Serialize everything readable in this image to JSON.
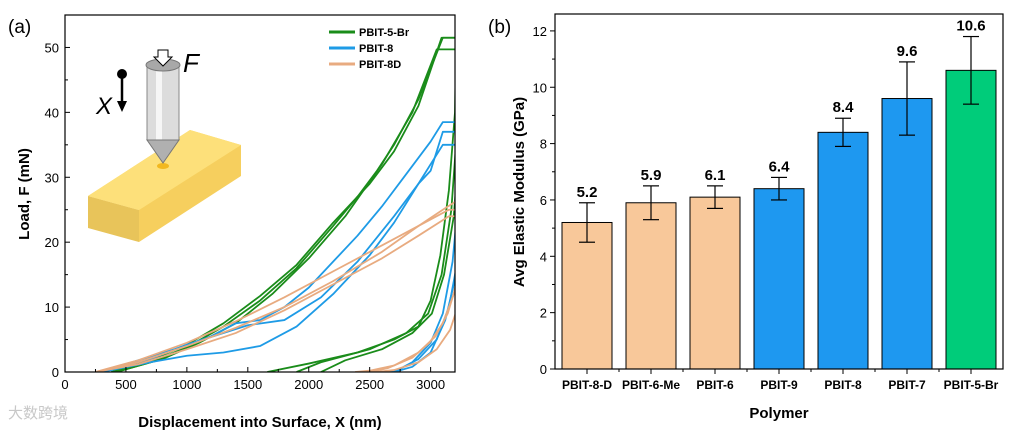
{
  "watermark": "大数跨境",
  "chart_data": [
    {
      "type": "line",
      "panel_label": "(a)",
      "title": "",
      "xlabel": "Displacement into Surface, X (nm)",
      "ylabel": "Load, F (mN)",
      "xlim": [
        0,
        3200
      ],
      "ylim": [
        0,
        55
      ],
      "xticks": [
        0,
        500,
        1000,
        1500,
        2000,
        2500,
        3000
      ],
      "yticks": [
        0,
        10,
        20,
        30,
        40,
        50
      ],
      "legend_position": "top-right",
      "inset_labels": {
        "displacement": "X",
        "force": "F"
      },
      "series": [
        {
          "name": "PBIT-5-Br",
          "color": "#1a8c1a",
          "curves": [
            [
              [
                420,
                0
              ],
              [
                700,
                1.5
              ],
              [
                1000,
                3.8
              ],
              [
                1300,
                7
              ],
              [
                1600,
                11
              ],
              [
                1900,
                16
              ],
              [
                2200,
                22.5
              ],
              [
                2400,
                27
              ],
              [
                2560,
                31
              ],
              [
                2700,
                35
              ],
              [
                2900,
                42
              ],
              [
                3100,
                51.5
              ],
              [
                3210,
                51.5
              ],
              [
                3200,
                40
              ],
              [
                3150,
                28
              ],
              [
                3080,
                18
              ],
              [
                3000,
                11
              ],
              [
                2900,
                7
              ],
              [
                2700,
                5
              ],
              [
                2400,
                3
              ],
              [
                2000,
                1.3
              ],
              [
                1660,
                0
              ]
            ],
            [
              [
                380,
                0
              ],
              [
                700,
                1.8
              ],
              [
                1000,
                4.2
              ],
              [
                1300,
                7.5
              ],
              [
                1600,
                11.7
              ],
              [
                1900,
                16.5
              ],
              [
                2200,
                23
              ],
              [
                2500,
                29
              ],
              [
                2700,
                34
              ],
              [
                2900,
                41
              ],
              [
                3090,
                51.5
              ],
              [
                3220,
                51.5
              ],
              [
                3220,
                38
              ],
              [
                3170,
                25
              ],
              [
                3090,
                15
              ],
              [
                2980,
                9
              ],
              [
                2800,
                6
              ],
              [
                2500,
                3.5
              ],
              [
                2100,
                1.5
              ],
              [
                1900,
                0
              ]
            ],
            [
              [
                420,
                0
              ],
              [
                800,
                2
              ],
              [
                1100,
                4.5
              ],
              [
                1400,
                7.5
              ],
              [
                1700,
                12
              ],
              [
                2000,
                17.5
              ],
              [
                2300,
                24
              ],
              [
                2600,
                32
              ],
              [
                2850,
                40
              ],
              [
                3050,
                49.7
              ],
              [
                3250,
                49.7
              ],
              [
                3240,
                36
              ],
              [
                3190,
                24
              ],
              [
                3110,
                15
              ],
              [
                3010,
                9
              ],
              [
                2850,
                6
              ],
              [
                2600,
                3.5
              ],
              [
                2300,
                1.8
              ],
              [
                2100,
                0
              ]
            ]
          ]
        },
        {
          "name": "PBIT-8",
          "color": "#1e9be6",
          "curves": [
            [
              [
                300,
                0
              ],
              [
                600,
                1.8
              ],
              [
                900,
                3.5
              ],
              [
                1200,
                5.5
              ],
              [
                1400,
                7.5
              ],
              [
                1600,
                8
              ],
              [
                1800,
                10
              ],
              [
                2000,
                13
              ],
              [
                2200,
                17
              ],
              [
                2400,
                21
              ],
              [
                2600,
                25.5
              ],
              [
                2800,
                30.5
              ],
              [
                3000,
                35.5
              ],
              [
                3100,
                38.5
              ],
              [
                3300,
                38.5
              ],
              [
                3280,
                28
              ],
              [
                3230,
                18
              ],
              [
                3150,
                10
              ],
              [
                3050,
                5
              ],
              [
                2900,
                2
              ],
              [
                2750,
                0.5
              ],
              [
                2650,
                0
              ]
            ],
            [
              [
                300,
                0
              ],
              [
                700,
                2
              ],
              [
                1000,
                4.2
              ],
              [
                1300,
                6
              ],
              [
                1500,
                7.2
              ],
              [
                1800,
                8
              ],
              [
                2100,
                11.5
              ],
              [
                2400,
                17
              ],
              [
                2700,
                24
              ],
              [
                2900,
                29
              ],
              [
                3000,
                31
              ],
              [
                3100,
                37
              ],
              [
                3250,
                37
              ],
              [
                3230,
                27
              ],
              [
                3180,
                17
              ],
              [
                3100,
                9
              ],
              [
                3000,
                4.5
              ],
              [
                2850,
                1.5
              ],
              [
                2700,
                0
              ]
            ],
            [
              [
                300,
                0
              ],
              [
                700,
                1.5
              ],
              [
                1000,
                2.5
              ],
              [
                1300,
                3
              ],
              [
                1600,
                4
              ],
              [
                1900,
                7
              ],
              [
                2200,
                12
              ],
              [
                2500,
                18
              ],
              [
                2700,
                23
              ],
              [
                2900,
                29
              ],
              [
                3100,
                35
              ],
              [
                3300,
                35
              ],
              [
                3270,
                25
              ],
              [
                3210,
                15
              ],
              [
                3120,
                8
              ],
              [
                3000,
                3
              ],
              [
                2850,
                0.8
              ],
              [
                2700,
                0
              ]
            ]
          ]
        },
        {
          "name": "PBIT-8D",
          "color": "#e8ab80",
          "curves": [
            [
              [
                250,
                0
              ],
              [
                600,
                1.5
              ],
              [
                1000,
                4
              ],
              [
                1400,
                6.8
              ],
              [
                1800,
                10
              ],
              [
                2200,
                14
              ],
              [
                2600,
                18.5
              ],
              [
                2900,
                22.5
              ],
              [
                3100,
                25
              ],
              [
                3200,
                26.2
              ],
              [
                3300,
                26.2
              ],
              [
                3280,
                20
              ],
              [
                3220,
                14
              ],
              [
                3140,
                9
              ],
              [
                3040,
                5.5
              ],
              [
                2900,
                3
              ],
              [
                2700,
                1
              ],
              [
                2500,
                0.2
              ],
              [
                2380,
                0
              ]
            ],
            [
              [
                250,
                0
              ],
              [
                600,
                1.8
              ],
              [
                1000,
                4.5
              ],
              [
                1400,
                7.8
              ],
              [
                1800,
                11.5
              ],
              [
                2200,
                15.5
              ],
              [
                2600,
                19.5
              ],
              [
                2900,
                22.5
              ],
              [
                3150,
                25
              ],
              [
                3270,
                25
              ],
              [
                3250,
                18
              ],
              [
                3190,
                12
              ],
              [
                3100,
                7.5
              ],
              [
                2990,
                4.5
              ],
              [
                2850,
                2.2
              ],
              [
                2650,
                0.6
              ],
              [
                2500,
                0
              ]
            ],
            [
              [
                250,
                0
              ],
              [
                600,
                1.2
              ],
              [
                1000,
                3.5
              ],
              [
                1400,
                6
              ],
              [
                1800,
                9.5
              ],
              [
                2200,
                13.5
              ],
              [
                2600,
                17.5
              ],
              [
                2900,
                21
              ],
              [
                3150,
                24
              ],
              [
                3300,
                24
              ],
              [
                3290,
                17
              ],
              [
                3240,
                11
              ],
              [
                3160,
                6.5
              ],
              [
                3050,
                3.5
              ],
              [
                2900,
                1.5
              ],
              [
                2700,
                0.3
              ],
              [
                2550,
                0
              ]
            ]
          ]
        }
      ]
    },
    {
      "type": "bar",
      "panel_label": "(b)",
      "title": "",
      "xlabel": "Polymer",
      "ylabel": "Avg Elastic Modulus (GPa)",
      "ylim": [
        0,
        12.6
      ],
      "yticks": [
        0,
        2,
        4,
        6,
        8,
        10,
        12
      ],
      "categories": [
        "PBIT-8-D",
        "PBIT-6-Me",
        "PBIT-6",
        "PBIT-9",
        "PBIT-8",
        "PBIT-7",
        "PBIT-5-Br"
      ],
      "values": [
        5.2,
        5.9,
        6.1,
        6.4,
        8.4,
        9.6,
        10.6
      ],
      "value_labels": [
        "5.2",
        "5.9",
        "6.1",
        "6.4",
        "8.4",
        "9.6",
        "10.6"
      ],
      "errors": [
        0.7,
        0.6,
        0.4,
        0.4,
        0.5,
        1.3,
        1.2
      ],
      "colors": [
        "#f8c89a",
        "#f8c89a",
        "#f8c89a",
        "#1e98f0",
        "#1e98f0",
        "#1e98f0",
        "#00cc7a"
      ]
    }
  ]
}
